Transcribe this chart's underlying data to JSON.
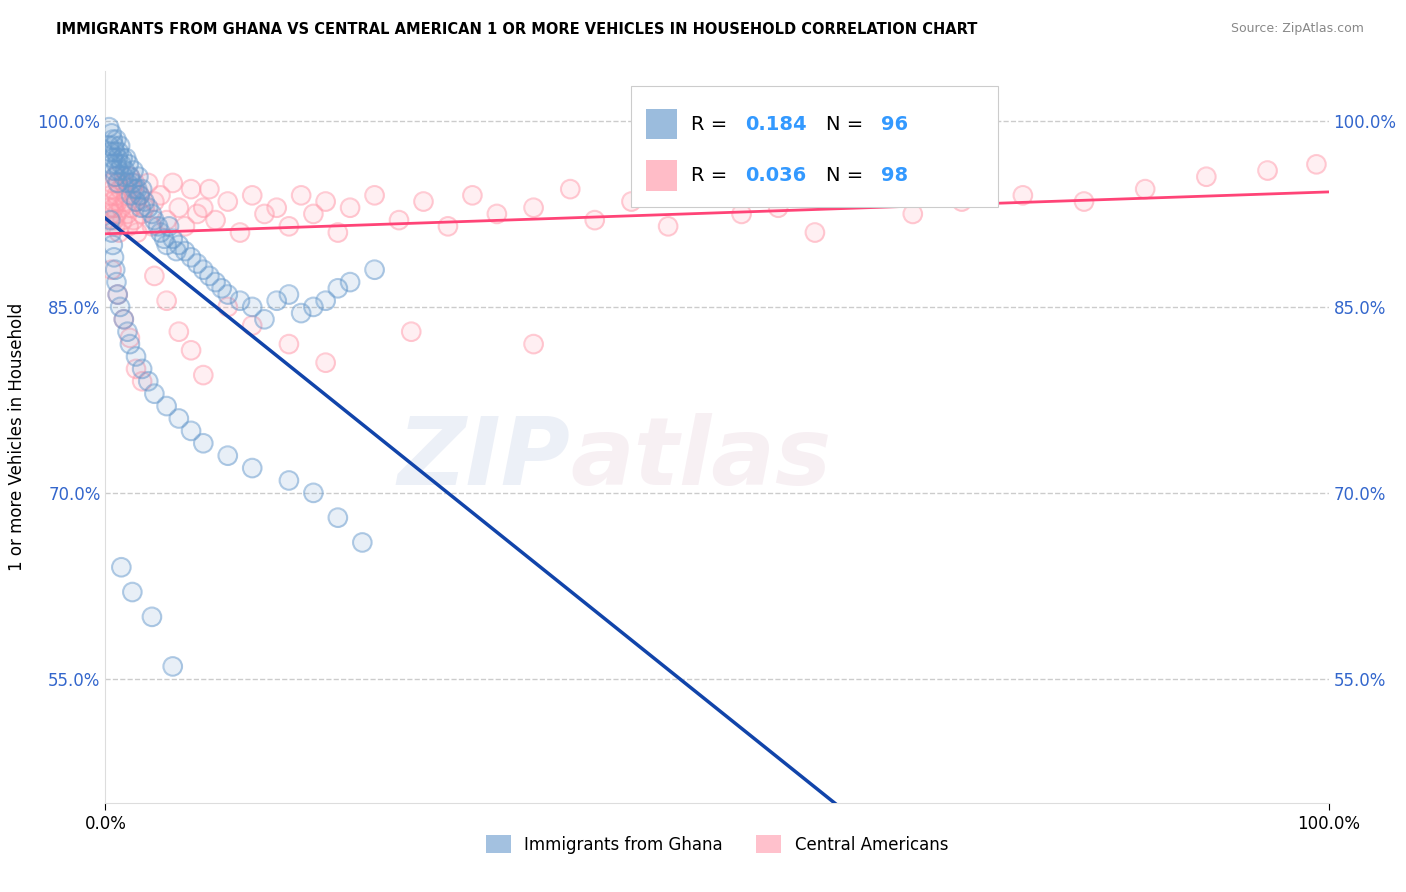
{
  "title": "IMMIGRANTS FROM GHANA VS CENTRAL AMERICAN 1 OR MORE VEHICLES IN HOUSEHOLD CORRELATION CHART",
  "source": "Source: ZipAtlas.com",
  "ylabel": "1 or more Vehicles in Household",
  "xlim": [
    0.0,
    100.0
  ],
  "ylim": [
    45.0,
    104.0
  ],
  "yticks": [
    55.0,
    70.0,
    85.0,
    100.0
  ],
  "xticks": [
    0.0,
    100.0
  ],
  "ytick_labels": [
    "55.0%",
    "70.0%",
    "85.0%",
    "100.0%"
  ],
  "xtick_labels": [
    "0.0%",
    "100.0%"
  ],
  "legend_labels": [
    "Immigrants from Ghana",
    "Central Americans"
  ],
  "ghana_color": "#6699cc",
  "central_color": "#ff99aa",
  "ghana_line_color": "#1144aa",
  "central_line_color": "#ff4477",
  "ghana_R": 0.184,
  "ghana_N": 96,
  "central_R": 0.036,
  "central_N": 98,
  "ghana_x": [
    0.3,
    0.3,
    0.4,
    0.5,
    0.5,
    0.6,
    0.6,
    0.7,
    0.7,
    0.8,
    0.8,
    0.9,
    0.9,
    1.0,
    1.0,
    1.1,
    1.1,
    1.2,
    1.3,
    1.4,
    1.5,
    1.6,
    1.7,
    1.8,
    1.9,
    2.0,
    2.1,
    2.2,
    2.3,
    2.4,
    2.5,
    2.6,
    2.7,
    2.8,
    2.9,
    3.0,
    3.2,
    3.5,
    3.8,
    4.0,
    4.3,
    4.5,
    4.8,
    5.0,
    5.2,
    5.5,
    5.8,
    6.0,
    6.5,
    7.0,
    7.5,
    8.0,
    8.5,
    9.0,
    9.5,
    10.0,
    11.0,
    12.0,
    13.0,
    14.0,
    15.0,
    16.0,
    17.0,
    18.0,
    19.0,
    20.0,
    22.0,
    0.4,
    0.5,
    0.6,
    0.7,
    0.8,
    0.9,
    1.0,
    1.2,
    1.5,
    1.8,
    2.0,
    2.5,
    3.0,
    3.5,
    4.0,
    5.0,
    6.0,
    7.0,
    8.0,
    10.0,
    12.0,
    15.0,
    17.0,
    19.0,
    21.0,
    1.3,
    2.2,
    3.8,
    5.5
  ],
  "ghana_y": [
    99.5,
    98.0,
    97.5,
    99.0,
    96.5,
    98.5,
    97.0,
    96.0,
    98.0,
    97.5,
    95.5,
    96.5,
    98.5,
    97.0,
    95.0,
    96.0,
    97.5,
    98.0,
    96.5,
    97.0,
    95.5,
    96.0,
    97.0,
    95.0,
    96.5,
    95.5,
    94.0,
    95.0,
    96.0,
    94.5,
    93.5,
    94.5,
    95.5,
    94.0,
    93.0,
    94.5,
    93.5,
    93.0,
    92.5,
    92.0,
    91.5,
    91.0,
    90.5,
    90.0,
    91.5,
    90.5,
    89.5,
    90.0,
    89.5,
    89.0,
    88.5,
    88.0,
    87.5,
    87.0,
    86.5,
    86.0,
    85.5,
    85.0,
    84.0,
    85.5,
    86.0,
    84.5,
    85.0,
    85.5,
    86.5,
    87.0,
    88.0,
    92.0,
    91.0,
    90.0,
    89.0,
    88.0,
    87.0,
    86.0,
    85.0,
    84.0,
    83.0,
    82.0,
    81.0,
    80.0,
    79.0,
    78.0,
    77.0,
    76.0,
    75.0,
    74.0,
    73.0,
    72.0,
    71.0,
    70.0,
    68.0,
    66.0,
    64.0,
    62.0,
    60.0,
    56.0
  ],
  "central_x": [
    0.3,
    0.4,
    0.5,
    0.5,
    0.6,
    0.6,
    0.7,
    0.7,
    0.8,
    0.8,
    0.9,
    0.9,
    1.0,
    1.0,
    1.1,
    1.2,
    1.3,
    1.4,
    1.5,
    1.6,
    1.7,
    1.8,
    1.9,
    2.0,
    2.1,
    2.2,
    2.3,
    2.4,
    2.5,
    2.6,
    2.8,
    3.0,
    3.2,
    3.5,
    3.8,
    4.0,
    4.5,
    5.0,
    5.5,
    6.0,
    6.5,
    7.0,
    7.5,
    8.0,
    8.5,
    9.0,
    10.0,
    11.0,
    12.0,
    13.0,
    14.0,
    15.0,
    16.0,
    17.0,
    18.0,
    19.0,
    20.0,
    22.0,
    24.0,
    26.0,
    28.0,
    30.0,
    32.0,
    35.0,
    38.0,
    40.0,
    43.0,
    46.0,
    49.0,
    52.0,
    55.0,
    58.0,
    62.0,
    66.0,
    70.0,
    75.0,
    80.0,
    85.0,
    90.0,
    95.0,
    99.0,
    0.5,
    1.0,
    1.5,
    2.0,
    2.5,
    3.0,
    4.0,
    5.0,
    6.0,
    7.0,
    8.0,
    10.0,
    12.0,
    15.0,
    18.0,
    25.0,
    35.0
  ],
  "central_y": [
    93.0,
    94.0,
    95.0,
    92.5,
    93.5,
    94.5,
    92.0,
    93.0,
    95.5,
    91.5,
    94.0,
    92.5,
    93.5,
    95.0,
    91.0,
    94.5,
    93.0,
    92.0,
    95.0,
    93.5,
    94.0,
    92.5,
    91.5,
    95.5,
    93.0,
    94.5,
    92.0,
    95.0,
    93.5,
    91.0,
    94.0,
    92.5,
    93.0,
    95.0,
    91.5,
    93.5,
    94.0,
    92.0,
    95.0,
    93.0,
    91.5,
    94.5,
    92.5,
    93.0,
    94.5,
    92.0,
    93.5,
    91.0,
    94.0,
    92.5,
    93.0,
    91.5,
    94.0,
    92.5,
    93.5,
    91.0,
    93.0,
    94.0,
    92.0,
    93.5,
    91.5,
    94.0,
    92.5,
    93.0,
    94.5,
    92.0,
    93.5,
    91.5,
    94.0,
    92.5,
    93.0,
    91.0,
    94.0,
    92.5,
    93.5,
    94.0,
    93.5,
    94.5,
    95.5,
    96.0,
    96.5,
    88.0,
    86.0,
    84.0,
    82.5,
    80.0,
    79.0,
    87.5,
    85.5,
    83.0,
    81.5,
    79.5,
    85.0,
    83.5,
    82.0,
    80.5,
    83.0,
    82.0
  ]
}
